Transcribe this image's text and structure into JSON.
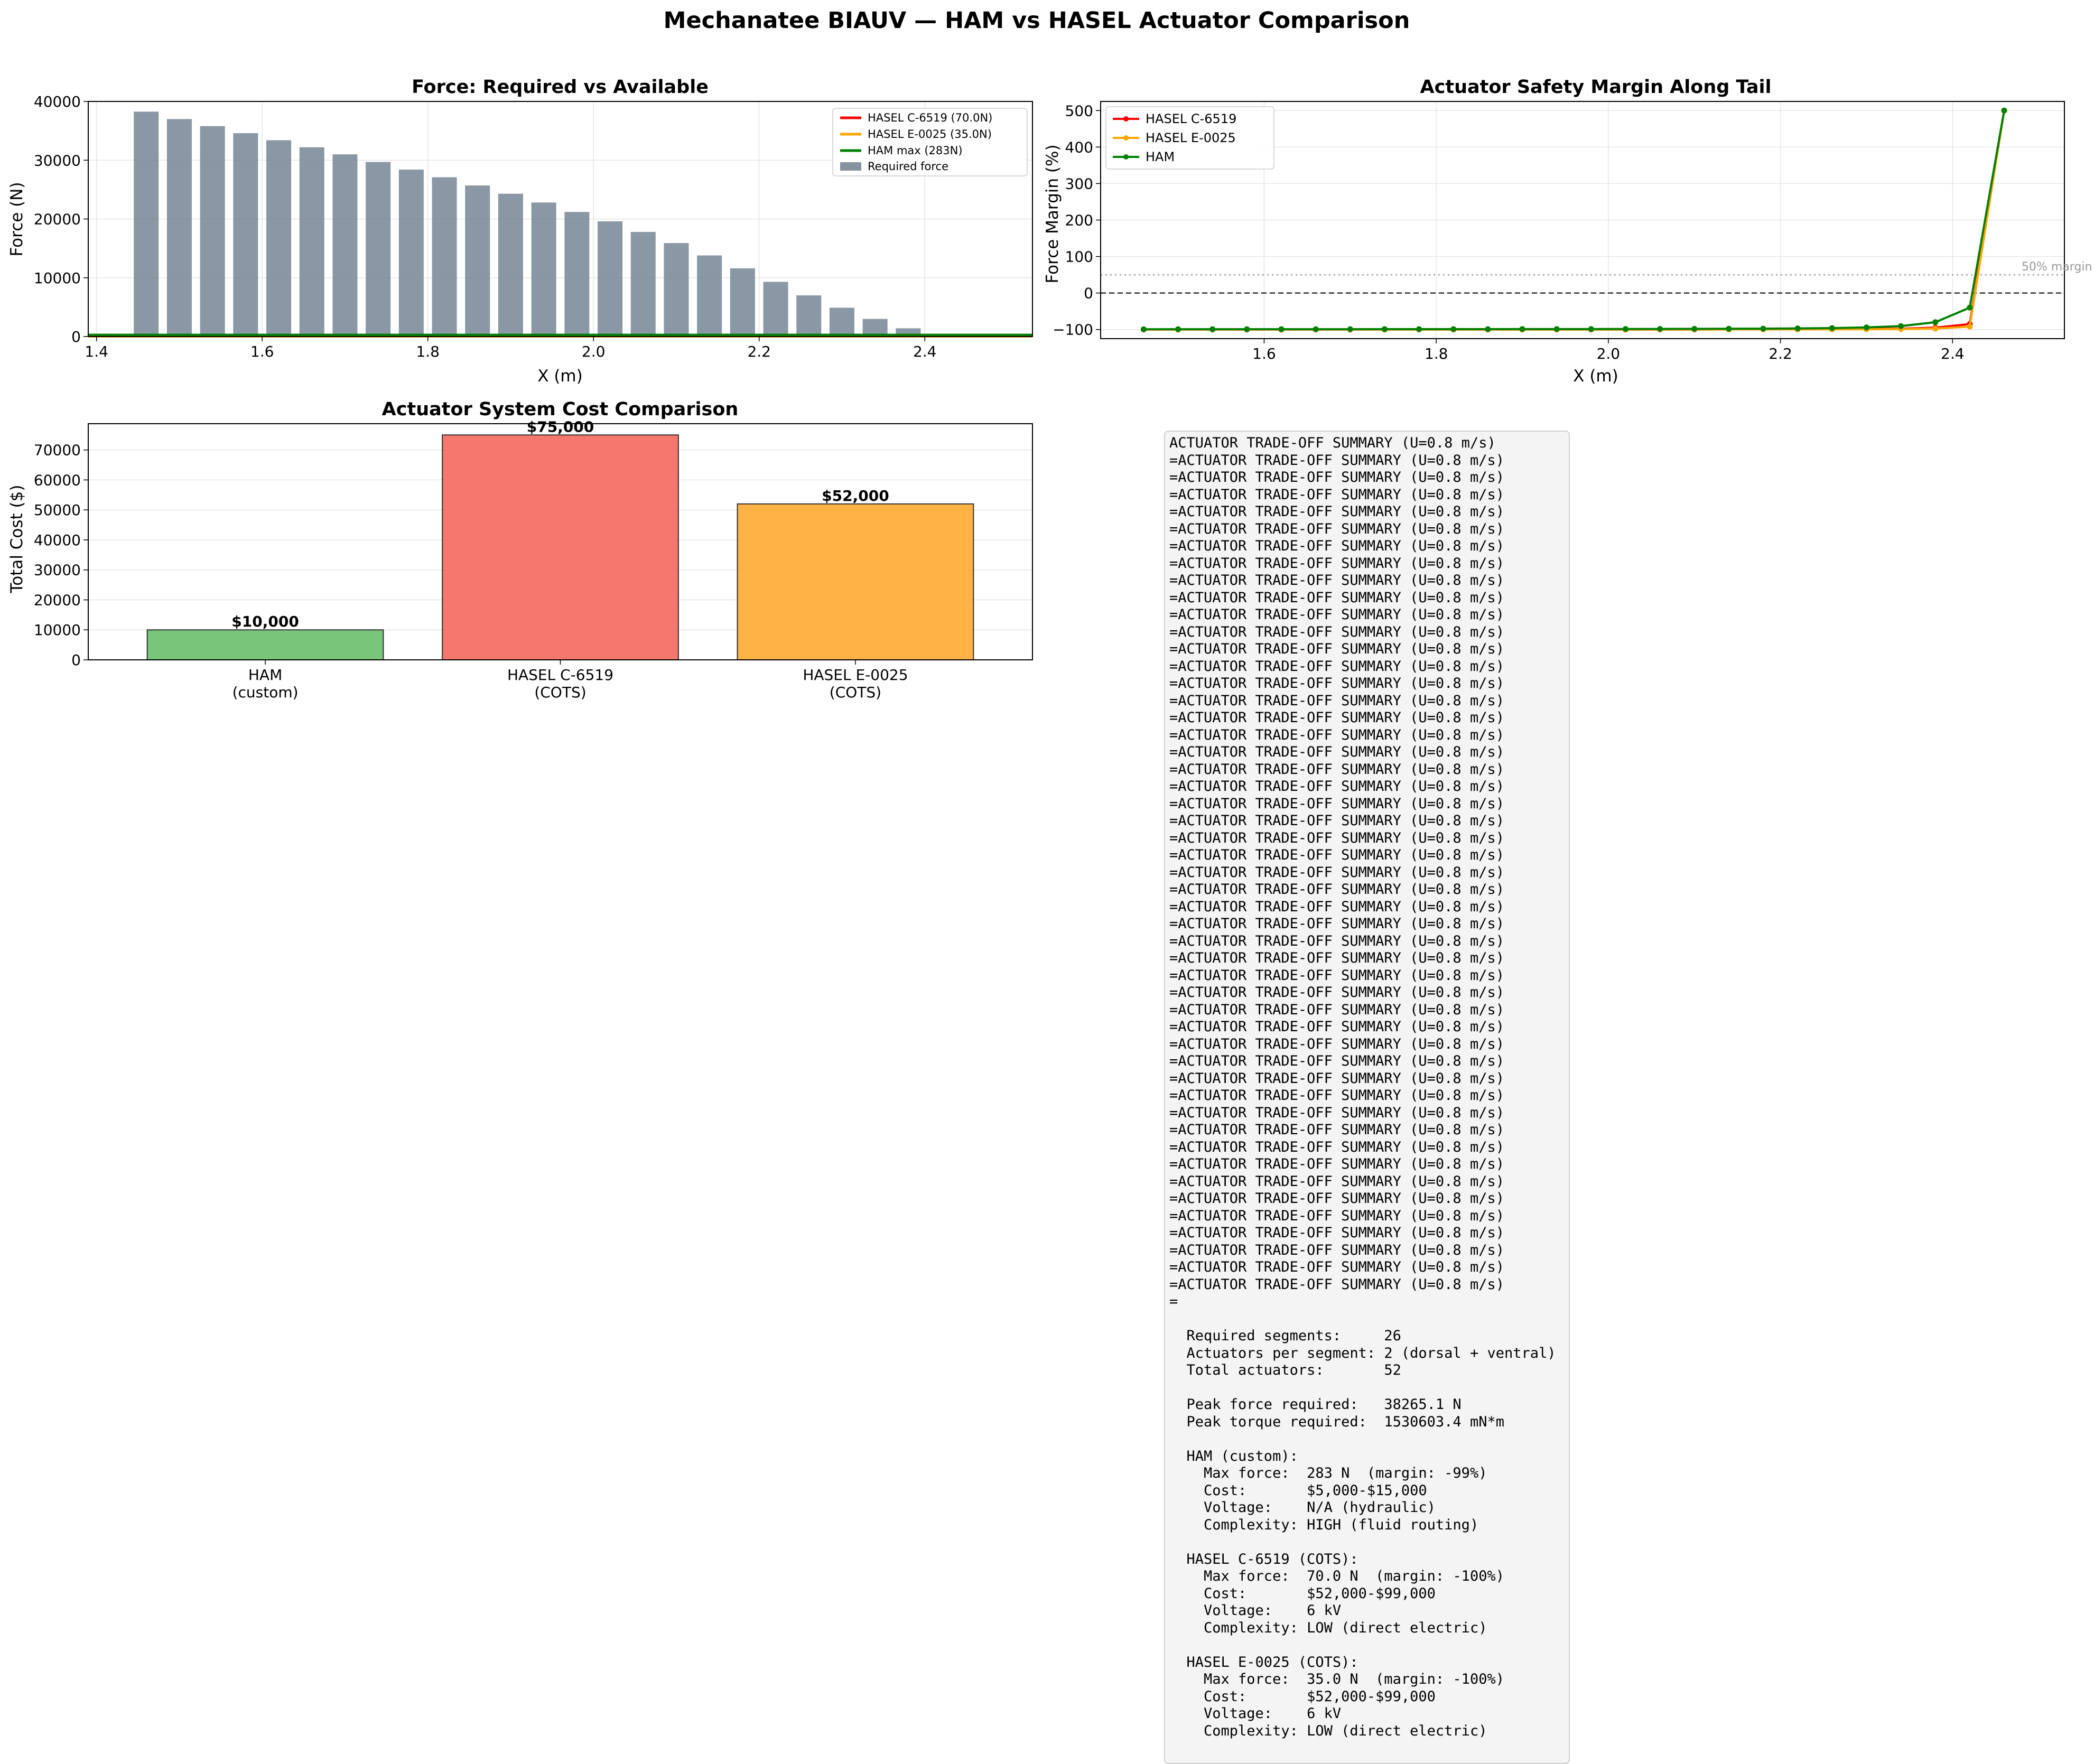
{
  "figure": {
    "suptitle": "Mechanatee BIAUV — HAM vs HASEL Actuator Comparison"
  },
  "panels": {
    "force": {
      "title": "Force: Required vs Available",
      "xlabel": "X (m)",
      "ylabel": "Force (N)",
      "xticks": [
        "1.4",
        "1.6",
        "1.8",
        "2.0",
        "2.2",
        "2.4"
      ],
      "yticks": [
        "0",
        "10000",
        "20000",
        "30000",
        "40000"
      ],
      "legend": [
        "HASEL C-6519 (70.0N)",
        "HASEL E-0025 (35.0N)",
        "HAM max (283N)",
        "Required force"
      ]
    },
    "margin": {
      "title": "Actuator Safety Margin Along Tail",
      "xlabel": "X (m)",
      "ylabel": "Force Margin (%)",
      "xticks": [
        "1.6",
        "1.8",
        "2.0",
        "2.2",
        "2.4"
      ],
      "yticks": [
        "−100",
        "0",
        "100",
        "200",
        "300",
        "400",
        "500"
      ],
      "legend": [
        "HASEL C-6519",
        "HASEL E-0025",
        "HAM"
      ],
      "annotation": "50% margin"
    },
    "cost": {
      "title": "Actuator System Cost Comparison",
      "ylabel": "Total Cost ($)",
      "yticks": [
        "0",
        "10000",
        "20000",
        "30000",
        "40000",
        "50000",
        "60000",
        "70000"
      ],
      "bar_labels": [
        "$10,000",
        "$75,000",
        "$52,000"
      ],
      "category_lines": [
        [
          "HAM",
          "(custom)"
        ],
        [
          "HASEL C-6519",
          "(COTS)"
        ],
        [
          "HASEL E-0025",
          "(COTS)"
        ]
      ]
    }
  },
  "colors": {
    "c6519": "#ff0000",
    "e0025": "#ffa500",
    "ham": "#008000",
    "required": "#708090",
    "ham_bar": "#6abf6a",
    "c6519_bar": "#f4685e",
    "e0025_bar": "#ffab33"
  },
  "chart_data": [
    {
      "type": "bar",
      "title": "Force: Required vs Available",
      "xlabel": "X (m)",
      "ylabel": "Force (N)",
      "xlim": [
        1.39,
        2.53
      ],
      "ylim": [
        0,
        40000
      ],
      "grid": true,
      "legend_position": "top-right",
      "x": [
        1.46,
        1.5,
        1.54,
        1.58,
        1.62,
        1.66,
        1.7,
        1.74,
        1.78,
        1.82,
        1.86,
        1.9,
        1.94,
        1.98,
        2.02,
        2.06,
        2.1,
        2.14,
        2.18,
        2.22,
        2.26,
        2.3,
        2.34,
        2.38,
        2.42,
        2.46
      ],
      "series": [
        {
          "name": "Required force",
          "kind": "bar",
          "values": [
            38265,
            37000,
            35800,
            34600,
            33400,
            32200,
            31000,
            29700,
            28400,
            27100,
            25700,
            24300,
            22800,
            21200,
            19600,
            17800,
            15900,
            13800,
            11600,
            9300,
            7000,
            4900,
            3000,
            1400,
            300,
            30
          ]
        },
        {
          "name": "HASEL C-6519 (70.0N)",
          "kind": "hline",
          "value": 70
        },
        {
          "name": "HASEL E-0025 (35.0N)",
          "kind": "hline",
          "value": 35
        },
        {
          "name": "HAM max (283N)",
          "kind": "hline",
          "value": 283
        }
      ]
    },
    {
      "type": "line",
      "title": "Actuator Safety Margin Along Tail",
      "xlabel": "X (m)",
      "ylabel": "Force Margin (%)",
      "xlim": [
        1.41,
        2.53
      ],
      "ylim": [
        -125,
        525
      ],
      "grid": true,
      "legend_position": "top-left",
      "x": [
        1.46,
        1.5,
        1.54,
        1.58,
        1.62,
        1.66,
        1.7,
        1.74,
        1.78,
        1.82,
        1.86,
        1.9,
        1.94,
        1.98,
        2.02,
        2.06,
        2.1,
        2.14,
        2.18,
        2.22,
        2.26,
        2.3,
        2.34,
        2.38,
        2.42,
        2.46
      ],
      "series": [
        {
          "name": "HASEL C-6519",
          "values": [
            -100,
            -100,
            -100,
            -100,
            -100,
            -100,
            -100,
            -100,
            -100,
            -100,
            -100,
            -100,
            -100,
            -100,
            -100,
            -100,
            -100,
            -99.5,
            -99.4,
            -99.2,
            -99.0,
            -98.6,
            -97.7,
            -95.0,
            -85.0,
            500
          ]
        },
        {
          "name": "HASEL E-0025",
          "values": [
            -100,
            -100,
            -100,
            -100,
            -100,
            -100,
            -100,
            -100,
            -100,
            -100,
            -100,
            -100,
            -100,
            -100,
            -100,
            -100,
            -100,
            -99.8,
            -99.7,
            -99.6,
            -99.5,
            -99.3,
            -98.8,
            -97.5,
            -92.0,
            500
          ]
        },
        {
          "name": "HAM",
          "values": [
            -99.3,
            -99.2,
            -99.2,
            -99.2,
            -99.2,
            -99.1,
            -99.1,
            -99.0,
            -99.0,
            -99.0,
            -98.9,
            -98.8,
            -98.8,
            -98.7,
            -98.6,
            -98.4,
            -98.2,
            -97.9,
            -97.6,
            -97.0,
            -96.0,
            -94.2,
            -90.6,
            -80.0,
            -40.0,
            500
          ]
        }
      ],
      "reference_lines": [
        {
          "label": "50% margin",
          "value": 50,
          "style": "dotted"
        },
        {
          "value": 0,
          "style": "dashed"
        }
      ]
    },
    {
      "type": "bar",
      "title": "Actuator System Cost Comparison",
      "ylabel": "Total Cost ($)",
      "ylim": [
        0,
        78750
      ],
      "grid": true,
      "categories": [
        "HAM\n(custom)",
        "HASEL C-6519\n(COTS)",
        "HASEL E-0025\n(COTS)"
      ],
      "values": [
        10000,
        75000,
        52000
      ],
      "data_labels": [
        "$10,000",
        "$75,000",
        "$52,000"
      ]
    }
  ],
  "summary": {
    "text": "ACTUATOR TRADE-OFF SUMMARY (U=0.8 m/s)\n=ACTUATOR TRADE-OFF SUMMARY (U=0.8 m/s)\n=ACTUATOR TRADE-OFF SUMMARY (U=0.8 m/s)\n=ACTUATOR TRADE-OFF SUMMARY (U=0.8 m/s)\n=ACTUATOR TRADE-OFF SUMMARY (U=0.8 m/s)\n=ACTUATOR TRADE-OFF SUMMARY (U=0.8 m/s)\n=ACTUATOR TRADE-OFF SUMMARY (U=0.8 m/s)\n=ACTUATOR TRADE-OFF SUMMARY (U=0.8 m/s)\n=ACTUATOR TRADE-OFF SUMMARY (U=0.8 m/s)\n=ACTUATOR TRADE-OFF SUMMARY (U=0.8 m/s)\n=ACTUATOR TRADE-OFF SUMMARY (U=0.8 m/s)\n=ACTUATOR TRADE-OFF SUMMARY (U=0.8 m/s)\n=ACTUATOR TRADE-OFF SUMMARY (U=0.8 m/s)\n=ACTUATOR TRADE-OFF SUMMARY (U=0.8 m/s)\n=ACTUATOR TRADE-OFF SUMMARY (U=0.8 m/s)\n=ACTUATOR TRADE-OFF SUMMARY (U=0.8 m/s)\n=ACTUATOR TRADE-OFF SUMMARY (U=0.8 m/s)\n=ACTUATOR TRADE-OFF SUMMARY (U=0.8 m/s)\n=ACTUATOR TRADE-OFF SUMMARY (U=0.8 m/s)\n=ACTUATOR TRADE-OFF SUMMARY (U=0.8 m/s)\n=ACTUATOR TRADE-OFF SUMMARY (U=0.8 m/s)\n=ACTUATOR TRADE-OFF SUMMARY (U=0.8 m/s)\n=ACTUATOR TRADE-OFF SUMMARY (U=0.8 m/s)\n=ACTUATOR TRADE-OFF SUMMARY (U=0.8 m/s)\n=ACTUATOR TRADE-OFF SUMMARY (U=0.8 m/s)\n=ACTUATOR TRADE-OFF SUMMARY (U=0.8 m/s)\n=ACTUATOR TRADE-OFF SUMMARY (U=0.8 m/s)\n=ACTUATOR TRADE-OFF SUMMARY (U=0.8 m/s)\n=ACTUATOR TRADE-OFF SUMMARY (U=0.8 m/s)\n=ACTUATOR TRADE-OFF SUMMARY (U=0.8 m/s)\n=ACTUATOR TRADE-OFF SUMMARY (U=0.8 m/s)\n=ACTUATOR TRADE-OFF SUMMARY (U=0.8 m/s)\n=ACTUATOR TRADE-OFF SUMMARY (U=0.8 m/s)\n=ACTUATOR TRADE-OFF SUMMARY (U=0.8 m/s)\n=ACTUATOR TRADE-OFF SUMMARY (U=0.8 m/s)\n=ACTUATOR TRADE-OFF SUMMARY (U=0.8 m/s)\n=ACTUATOR TRADE-OFF SUMMARY (U=0.8 m/s)\n=ACTUATOR TRADE-OFF SUMMARY (U=0.8 m/s)\n=ACTUATOR TRADE-OFF SUMMARY (U=0.8 m/s)\n=ACTUATOR TRADE-OFF SUMMARY (U=0.8 m/s)\n=ACTUATOR TRADE-OFF SUMMARY (U=0.8 m/s)\n=ACTUATOR TRADE-OFF SUMMARY (U=0.8 m/s)\n=ACTUATOR TRADE-OFF SUMMARY (U=0.8 m/s)\n=ACTUATOR TRADE-OFF SUMMARY (U=0.8 m/s)\n=ACTUATOR TRADE-OFF SUMMARY (U=0.8 m/s)\n=ACTUATOR TRADE-OFF SUMMARY (U=0.8 m/s)\n=ACTUATOR TRADE-OFF SUMMARY (U=0.8 m/s)\n=ACTUATOR TRADE-OFF SUMMARY (U=0.8 m/s)\n=ACTUATOR TRADE-OFF SUMMARY (U=0.8 m/s)\n=ACTUATOR TRADE-OFF SUMMARY (U=0.8 m/s)\n=\n\n  Required segments:     26\n  Actuators per segment: 2 (dorsal + ventral)\n  Total actuators:       52\n\n  Peak force required:   38265.1 N\n  Peak torque required:  1530603.4 mN*m\n\n  HAM (custom):\n    Max force:  283 N  (margin: -99%)\n    Cost:       $5,000-$15,000\n    Voltage:    N/A (hydraulic)\n    Complexity: HIGH (fluid routing)\n\n  HASEL C-6519 (COTS):\n    Max force:  70.0 N  (margin: -100%)\n    Cost:       $52,000-$99,000\n    Voltage:    6 kV\n    Complexity: LOW (direct electric)\n\n  HASEL E-0025 (COTS):\n    Max force:  35.0 N  (margin: -100%)\n    Cost:       $52,000-$99,000\n    Voltage:    6 kV\n    Complexity: LOW (direct electric)"
  }
}
